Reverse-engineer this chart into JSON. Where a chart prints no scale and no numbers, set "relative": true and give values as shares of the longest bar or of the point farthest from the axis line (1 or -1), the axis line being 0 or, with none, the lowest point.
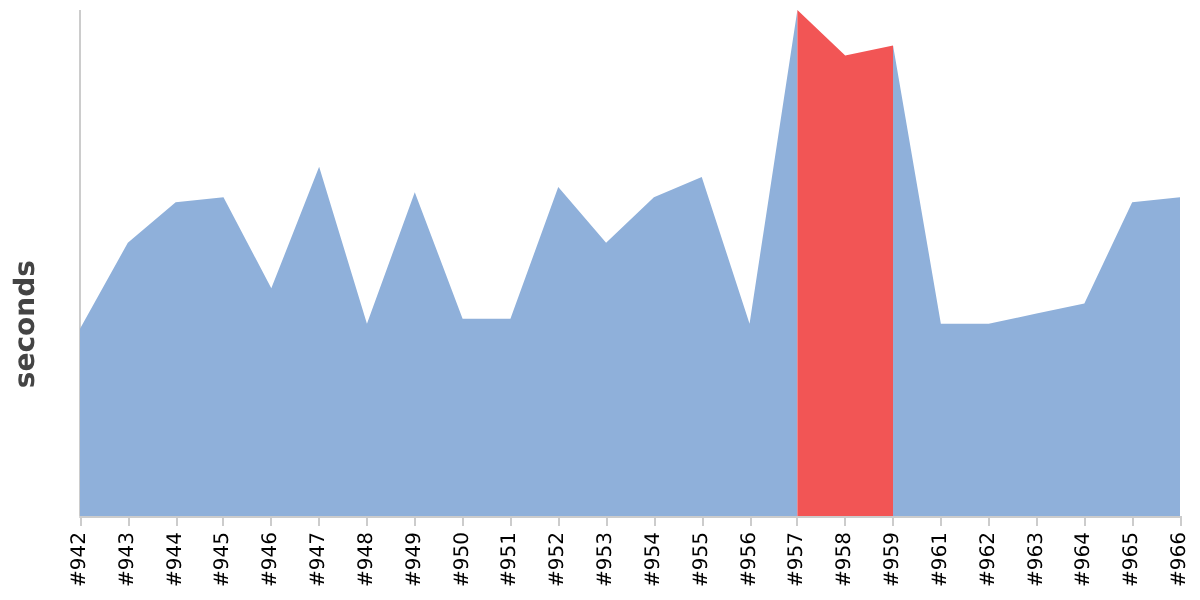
{
  "chart_data": {
    "type": "area",
    "ylabel": "seconds",
    "relative": true,
    "grid": false,
    "marker": "none",
    "categories": [
      "#942",
      "#943",
      "#944",
      "#945",
      "#946",
      "#947",
      "#948",
      "#949",
      "#950",
      "#951",
      "#952",
      "#953",
      "#954",
      "#955",
      "#956",
      "#957",
      "#958",
      "#959",
      "#961",
      "#962",
      "#963",
      "#964",
      "#965",
      "#966"
    ],
    "series": [
      {
        "color": "#8fb0da",
        "values": [
          0.37,
          0.54,
          0.62,
          0.63,
          0.45,
          0.69,
          0.38,
          0.64,
          0.39,
          0.39,
          0.65,
          0.54,
          0.63,
          0.67,
          0.38,
          1,
          null,
          0.93,
          0.38,
          0.38,
          0.4,
          0.42,
          0.62,
          0.63
        ]
      },
      {
        "color": "#f25555",
        "values": [
          null,
          null,
          null,
          null,
          null,
          null,
          null,
          null,
          null,
          null,
          null,
          null,
          null,
          null,
          null,
          1,
          0.91,
          0.93,
          null,
          null,
          null,
          null,
          null,
          null
        ]
      }
    ]
  }
}
